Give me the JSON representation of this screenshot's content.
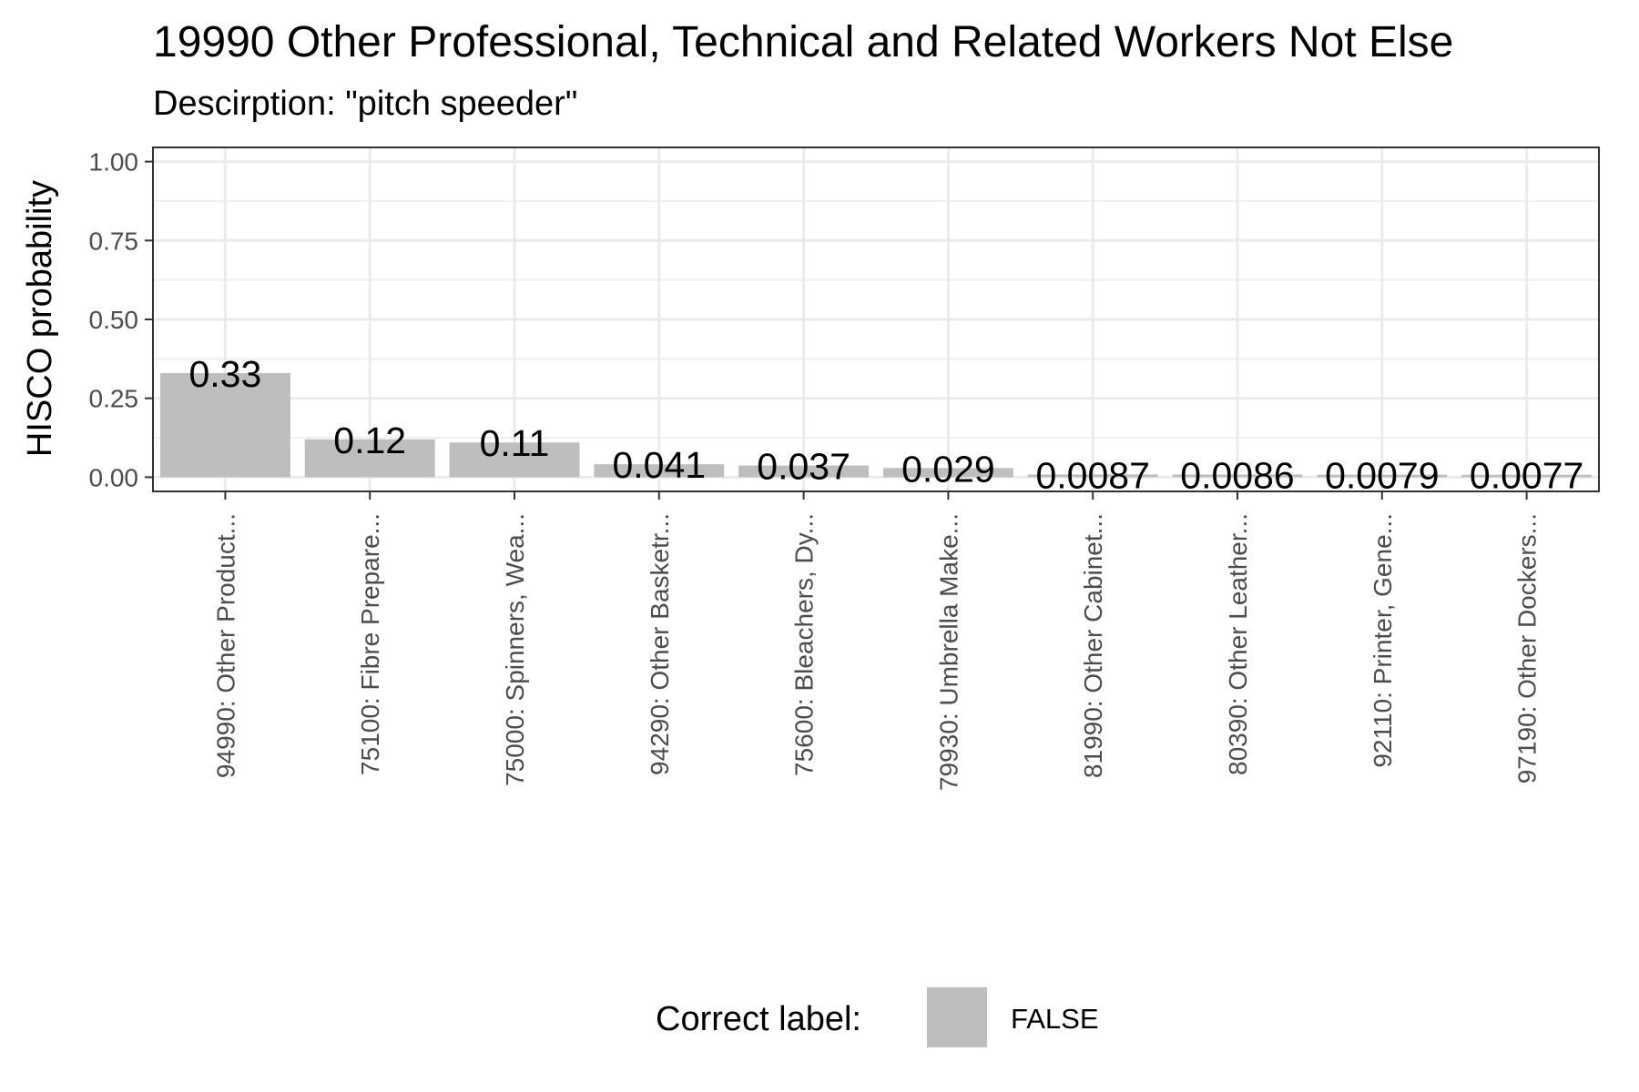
{
  "chart_data": {
    "type": "bar",
    "title": "19990 Other Professional, Technical and Related Workers Not Else",
    "subtitle": "Descirption: \"pitch speeder\"",
    "xlabel": "",
    "ylabel": "HISCO probability",
    "ylim": [
      0,
      1
    ],
    "yticks": [
      "0.00",
      "0.25",
      "0.50",
      "0.75",
      "1.00"
    ],
    "categories": [
      "94990: Other Product...",
      "75100: Fibre Prepare...",
      "75000: Spinners, Wea...",
      "94290: Other Basketr...",
      "75600: Bleachers, Dy...",
      "79930: Umbrella Make...",
      "81990: Other Cabinet...",
      "80390: Other Leather...",
      "92110: Printer, Gene...",
      "97190: Other Dockers..."
    ],
    "values": [
      0.33,
      0.12,
      0.11,
      0.041,
      0.037,
      0.029,
      0.0087,
      0.0086,
      0.0079,
      0.0077
    ],
    "value_labels": [
      "0.33",
      "0.12",
      "0.11",
      "0.041",
      "0.037",
      "0.029",
      "0.0087",
      "0.0086",
      "0.0079",
      "0.0077"
    ],
    "grid": true,
    "legend": {
      "title": "Correct label:",
      "placement": "bottom",
      "entries": [
        {
          "label": "FALSE",
          "color": "#bebebe"
        }
      ]
    },
    "colors": {
      "bar": "#bebebe",
      "grid": "#ebebeb",
      "panel_border": "#333333"
    }
  }
}
